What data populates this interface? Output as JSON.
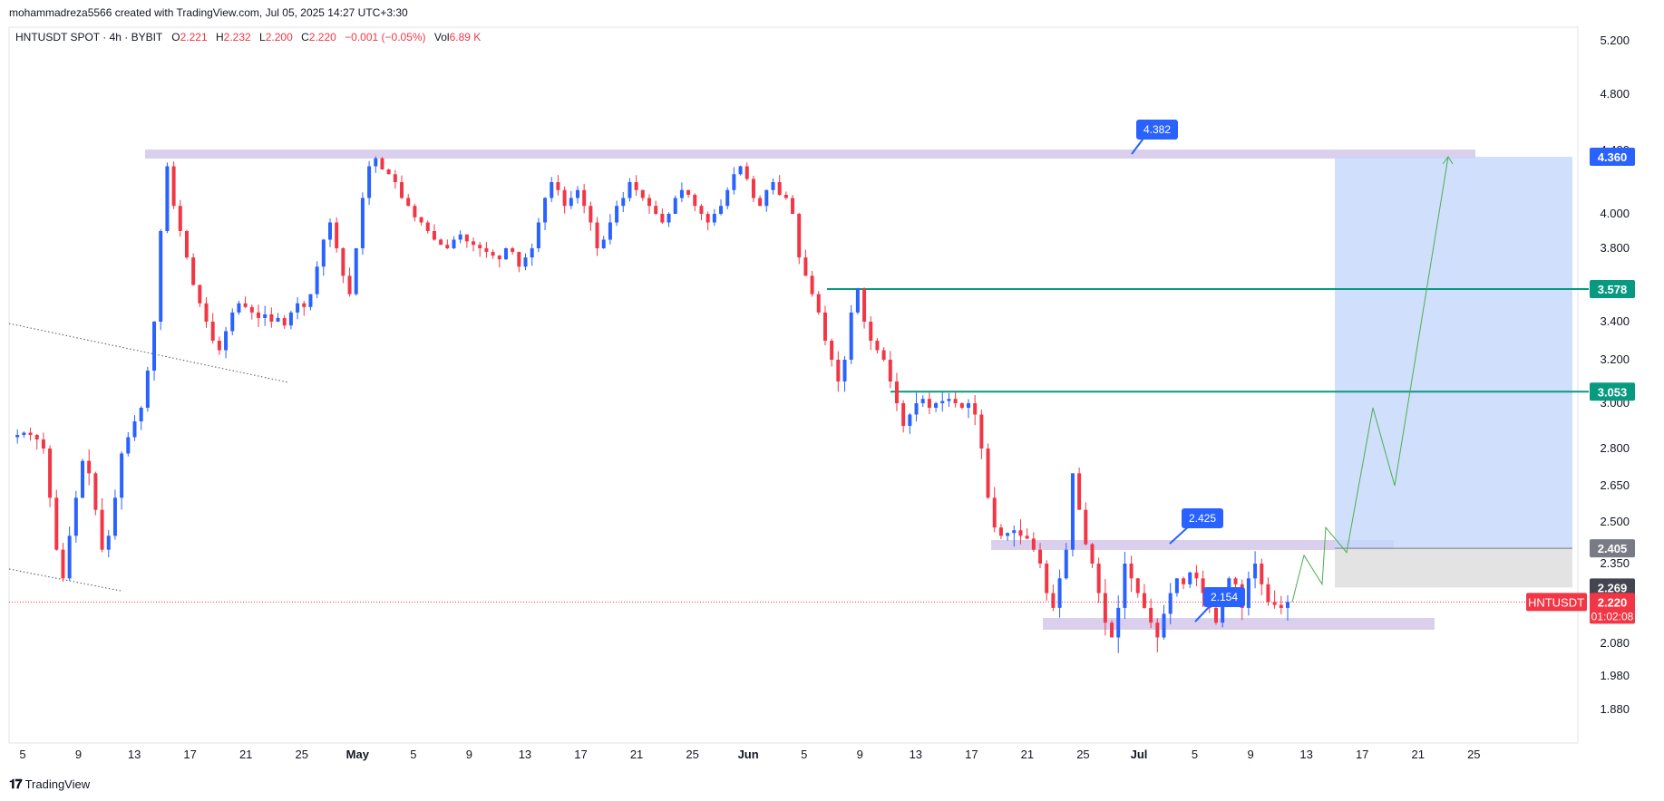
{
  "header": {
    "credit": "mohammadreza5566 created with TradingView.com, Jul 05, 2025 14:27 UTC+3:30"
  },
  "symbol_bar": {
    "name": "HNTUSDT SPOT · 4h · BYBIT",
    "o_label": "O",
    "o": "2.221",
    "h_label": "H",
    "h": "2.232",
    "l_label": "L",
    "l": "2.200",
    "c_label": "C",
    "c": "2.220",
    "change": "−0.001 (−0.05%)",
    "vol_label": "Vol",
    "vol": "6.89 K"
  },
  "footer": {
    "brand": "TradingView"
  },
  "colors": {
    "up": "#2962ff",
    "down": "#f23645",
    "green_line": "#089981",
    "zone": "#d1c4e9",
    "target_box": "#c4d7fb",
    "stop_box": "#e0e0e0",
    "label_blue": "#2962ff",
    "path_green": "#4caf50"
  },
  "chart_data": {
    "type": "candlestick",
    "symbol": "HNTUSDT",
    "y_ticks": [
      "5.200",
      "4.800",
      "4.400",
      "4.000",
      "3.800",
      "3.400",
      "3.200",
      "3.000",
      "2.800",
      "2.650",
      "2.500",
      "2.350",
      "2.080",
      "1.980",
      "1.880"
    ],
    "x_ticks": [
      "5",
      "9",
      "13",
      "17",
      "21",
      "25",
      "May",
      "5",
      "9",
      "13",
      "17",
      "21",
      "25",
      "Jun",
      "5",
      "9",
      "13",
      "17",
      "21",
      "25",
      "Jul",
      "5",
      "9",
      "13",
      "17",
      "21",
      "25"
    ],
    "price_labels": [
      {
        "text": "4.360",
        "color": "#2962ff"
      },
      {
        "text": "3.578",
        "color": "#089981"
      },
      {
        "text": "3.053",
        "color": "#089981"
      },
      {
        "text": "2.405",
        "color": "#787b86"
      },
      {
        "text": "2.269",
        "color": "#434651"
      },
      {
        "text": "2.220",
        "color": "#f23645"
      }
    ],
    "countdown": "01:02:08",
    "series_label": "HNTUSDT",
    "callouts": [
      "4.382",
      "2.425",
      "2.154"
    ],
    "horizontal_levels": [
      3.578,
      3.053
    ],
    "resistance_zone_top": 4.382,
    "range_top": 2.425,
    "range_bottom": 2.154,
    "last_price": 2.22,
    "target": 4.36,
    "entry": 2.405,
    "stop": 2.269,
    "path_prices": [
      2.22,
      2.38,
      2.28,
      2.48,
      2.39,
      2.98,
      2.65,
      4.36
    ],
    "price_path": [
      2.85,
      2.86,
      2.87,
      2.86,
      2.84,
      2.8,
      2.6,
      2.4,
      2.3,
      2.45,
      2.6,
      2.75,
      2.7,
      2.55,
      2.4,
      2.45,
      2.6,
      2.78,
      2.85,
      2.92,
      2.98,
      3.15,
      3.4,
      3.9,
      4.3,
      4.05,
      3.9,
      3.75,
      3.6,
      3.5,
      3.4,
      3.3,
      3.25,
      3.35,
      3.45,
      3.5,
      3.48,
      3.45,
      3.42,
      3.44,
      3.4,
      3.42,
      3.38,
      3.45,
      3.5,
      3.48,
      3.55,
      3.7,
      3.85,
      3.95,
      3.8,
      3.65,
      3.55,
      3.8,
      4.1,
      4.3,
      4.35,
      4.28,
      4.25,
      4.2,
      4.1,
      4.05,
      3.98,
      3.95,
      3.9,
      3.85,
      3.82,
      3.8,
      3.85,
      3.88,
      3.84,
      3.82,
      3.8,
      3.78,
      3.76,
      3.74,
      3.8,
      3.78,
      3.7,
      3.75,
      3.8,
      3.95,
      4.1,
      4.2,
      4.15,
      4.05,
      4.1,
      4.15,
      4.05,
      3.95,
      3.8,
      3.85,
      3.95,
      4.05,
      4.1,
      4.2,
      4.15,
      4.1,
      4.05,
      4.0,
      3.95,
      4.0,
      4.1,
      4.15,
      4.12,
      4.05,
      4.0,
      3.95,
      4.0,
      4.05,
      4.15,
      4.25,
      4.3,
      4.22,
      4.1,
      4.05,
      4.15,
      4.2,
      4.12,
      4.1,
      4.0,
      3.75,
      3.65,
      3.55,
      3.45,
      3.3,
      3.2,
      3.1,
      3.2,
      3.45,
      3.58,
      3.4,
      3.3,
      3.25,
      3.2,
      3.1,
      3.0,
      2.9,
      2.95,
      3.0,
      3.02,
      2.98,
      3.0,
      3.01,
      3.02,
      3.0,
      2.98,
      3.0,
      2.95,
      2.8,
      2.6,
      2.48,
      2.45,
      2.46,
      2.47,
      2.45,
      2.44,
      2.4,
      2.35,
      2.25,
      2.2,
      2.3,
      2.4,
      2.7,
      2.55,
      2.42,
      2.35,
      2.25,
      2.15,
      2.1,
      2.2,
      2.35,
      2.3,
      2.25,
      2.2,
      2.15,
      2.1,
      2.18,
      2.25,
      2.3,
      2.28,
      2.32,
      2.3,
      2.25,
      2.2,
      2.15,
      2.25,
      2.3,
      2.28,
      2.2,
      2.3,
      2.35,
      2.28,
      2.22,
      2.21,
      2.2,
      2.22
    ]
  }
}
